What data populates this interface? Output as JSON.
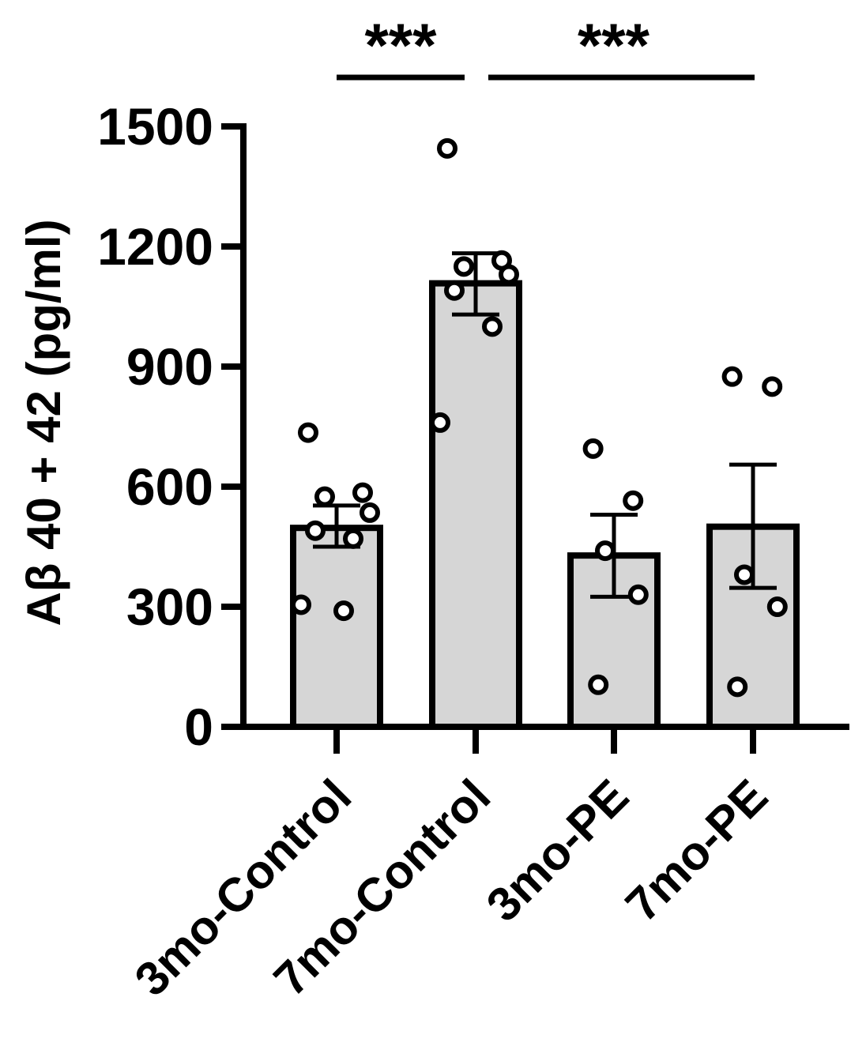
{
  "chart_data": {
    "type": "bar",
    "categories": [
      "3mo-Control",
      "7mo-Control",
      "3mo-PE",
      "7mo-PE"
    ],
    "values": [
      497,
      1108,
      428,
      500
    ],
    "error_bars": [
      {
        "low": 450,
        "high": 553
      },
      {
        "low": 1030,
        "high": 1183
      },
      {
        "low": 325,
        "high": 530
      },
      {
        "low": 347,
        "high": 655
      }
    ],
    "points": [
      [
        735,
        585,
        575,
        535,
        490,
        470,
        305,
        290
      ],
      [
        1445,
        1165,
        1150,
        1130,
        1090,
        1000,
        760
      ],
      [
        695,
        565,
        440,
        330,
        105
      ],
      [
        875,
        850,
        380,
        300,
        100
      ]
    ],
    "ylabel": "Aβ 40 + 42 (pg/ml)",
    "xlabel": "",
    "ylim": [
      0,
      1500
    ],
    "yticks": [
      "0",
      "300",
      "600",
      "900",
      "1200",
      "1500"
    ],
    "significance": [
      {
        "from": "3mo-Control",
        "to": "7mo-Control",
        "label": "***"
      },
      {
        "from": "7mo-Control",
        "to": "7mo-PE",
        "label": "***"
      }
    ],
    "bar_color": "#d6d6d6",
    "edge_color": "#000000",
    "grid": false,
    "legend": "none"
  }
}
